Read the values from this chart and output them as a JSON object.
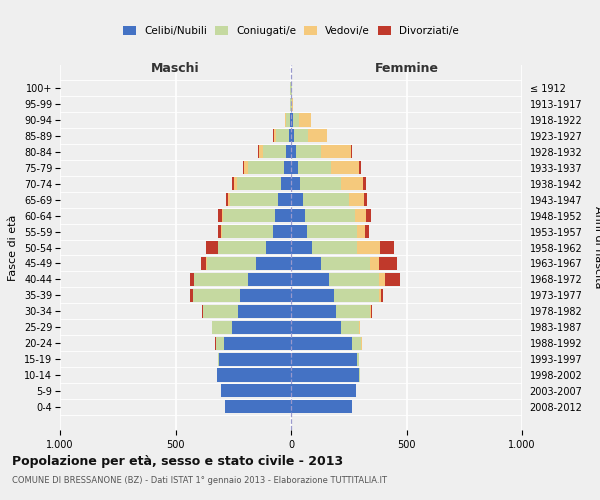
{
  "age_groups": [
    "0-4",
    "5-9",
    "10-14",
    "15-19",
    "20-24",
    "25-29",
    "30-34",
    "35-39",
    "40-44",
    "45-49",
    "50-54",
    "55-59",
    "60-64",
    "65-69",
    "70-74",
    "75-79",
    "80-84",
    "85-89",
    "90-94",
    "95-99",
    "100+"
  ],
  "birth_years": [
    "2008-2012",
    "2003-2007",
    "1998-2002",
    "1993-1997",
    "1988-1992",
    "1983-1987",
    "1978-1982",
    "1973-1977",
    "1968-1972",
    "1963-1967",
    "1958-1962",
    "1953-1957",
    "1948-1952",
    "1943-1947",
    "1938-1942",
    "1933-1937",
    "1928-1932",
    "1923-1927",
    "1918-1922",
    "1913-1917",
    "≤ 1912"
  ],
  "male": {
    "celibi": [
      285,
      305,
      320,
      310,
      290,
      255,
      230,
      220,
      185,
      150,
      110,
      80,
      70,
      55,
      45,
      30,
      20,
      10,
      5,
      2,
      2
    ],
    "coniugati": [
      0,
      0,
      2,
      5,
      35,
      85,
      150,
      205,
      235,
      215,
      205,
      220,
      225,
      210,
      190,
      155,
      100,
      55,
      18,
      3,
      1
    ],
    "vedovi": [
      0,
      0,
      0,
      0,
      1,
      0,
      1,
      1,
      2,
      3,
      3,
      4,
      5,
      8,
      10,
      20,
      20,
      10,
      5,
      0,
      0
    ],
    "divorziati": [
      0,
      0,
      0,
      0,
      1,
      2,
      5,
      10,
      15,
      20,
      50,
      10,
      15,
      8,
      10,
      3,
      2,
      2,
      0,
      0,
      0
    ]
  },
  "female": {
    "nubili": [
      265,
      280,
      295,
      285,
      265,
      215,
      195,
      185,
      165,
      130,
      90,
      70,
      60,
      50,
      40,
      30,
      20,
      15,
      8,
      2,
      2
    ],
    "coniugate": [
      0,
      0,
      2,
      8,
      40,
      80,
      145,
      195,
      215,
      210,
      195,
      215,
      215,
      200,
      175,
      145,
      110,
      60,
      25,
      3,
      1
    ],
    "vedove": [
      0,
      0,
      0,
      0,
      1,
      2,
      5,
      8,
      25,
      40,
      100,
      35,
      50,
      65,
      95,
      120,
      130,
      80,
      52,
      3,
      1
    ],
    "divorziate": [
      0,
      0,
      0,
      0,
      1,
      2,
      5,
      10,
      65,
      80,
      60,
      18,
      20,
      12,
      15,
      10,
      3,
      2,
      0,
      0,
      0
    ]
  },
  "colors": {
    "celibi": "#4472C4",
    "coniugati": "#C5D9A0",
    "vedovi": "#F5C97C",
    "divorziati": "#C0392B"
  },
  "title": "Popolazione per età, sesso e stato civile - 2013",
  "subtitle": "COMUNE DI BRESSANONE (BZ) - Dati ISTAT 1° gennaio 2013 - Elaborazione TUTTITALIA.IT",
  "xlabel_left": "Maschi",
  "xlabel_right": "Femmine",
  "ylabel_left": "Fasce di età",
  "ylabel_right": "Anni di nascita",
  "xlim": 1000,
  "background_color": "#efefef",
  "grid_color": "#ffffff"
}
